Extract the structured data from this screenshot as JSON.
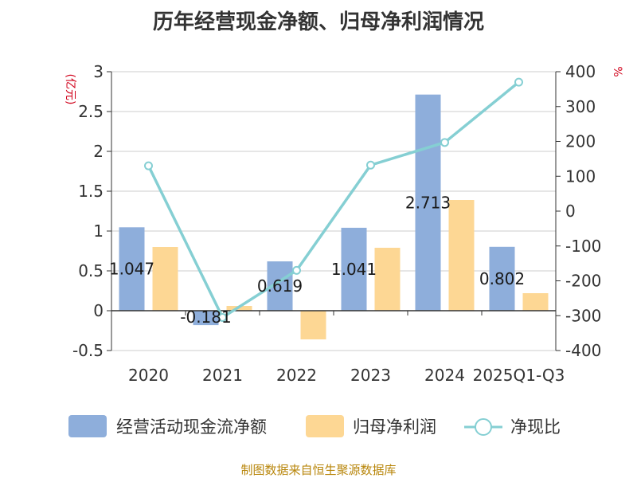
{
  "title": "历年经营现金净额、归母净利润情况",
  "source": "制图数据来自恒生聚源数据库",
  "colors": {
    "cash": "#8eaedb",
    "profit": "#fdd794",
    "ratio": "#85cfd3",
    "grid": "#cccccc",
    "axis": "#333333",
    "unit": "#d0021b"
  },
  "chart_data": {
    "type": "bar-line-combo",
    "categories": [
      "2020",
      "2021",
      "2022",
      "2023",
      "2024",
      "2025Q1-Q3"
    ],
    "series": [
      {
        "name": "经营活动现金流净额",
        "type": "bar",
        "axis": "left",
        "values": [
          1.047,
          -0.181,
          0.619,
          1.041,
          2.713,
          0.802
        ],
        "labels": [
          "1.047",
          "-0.181",
          "0.619",
          "1.041",
          "2.713",
          "0.802"
        ]
      },
      {
        "name": "归母净利润",
        "type": "bar",
        "axis": "left",
        "values": [
          0.8,
          0.06,
          -0.36,
          0.79,
          1.39,
          0.22
        ]
      },
      {
        "name": "净现比",
        "type": "line",
        "axis": "right",
        "values": [
          130,
          -305,
          -170,
          132,
          197,
          370
        ]
      }
    ],
    "left_axis": {
      "unit": "(亿元)",
      "min": -0.5,
      "max": 3,
      "ticks": [
        -0.5,
        0,
        0.5,
        1,
        1.5,
        2,
        2.5,
        3
      ],
      "tick_labels": [
        "-0.5",
        "0",
        "0.5",
        "1",
        "1.5",
        "2",
        "2.5",
        "3"
      ]
    },
    "right_axis": {
      "unit": "%",
      "min": -400,
      "max": 400,
      "ticks": [
        -400,
        -300,
        -200,
        -100,
        0,
        100,
        200,
        300,
        400
      ],
      "tick_labels": [
        "-400",
        "-300",
        "-200",
        "-100",
        "0",
        "100",
        "200",
        "300",
        "400"
      ]
    },
    "legend": [
      "经营活动现金流净额",
      "归母净利润",
      "净现比"
    ],
    "legend_position": "bottom"
  }
}
